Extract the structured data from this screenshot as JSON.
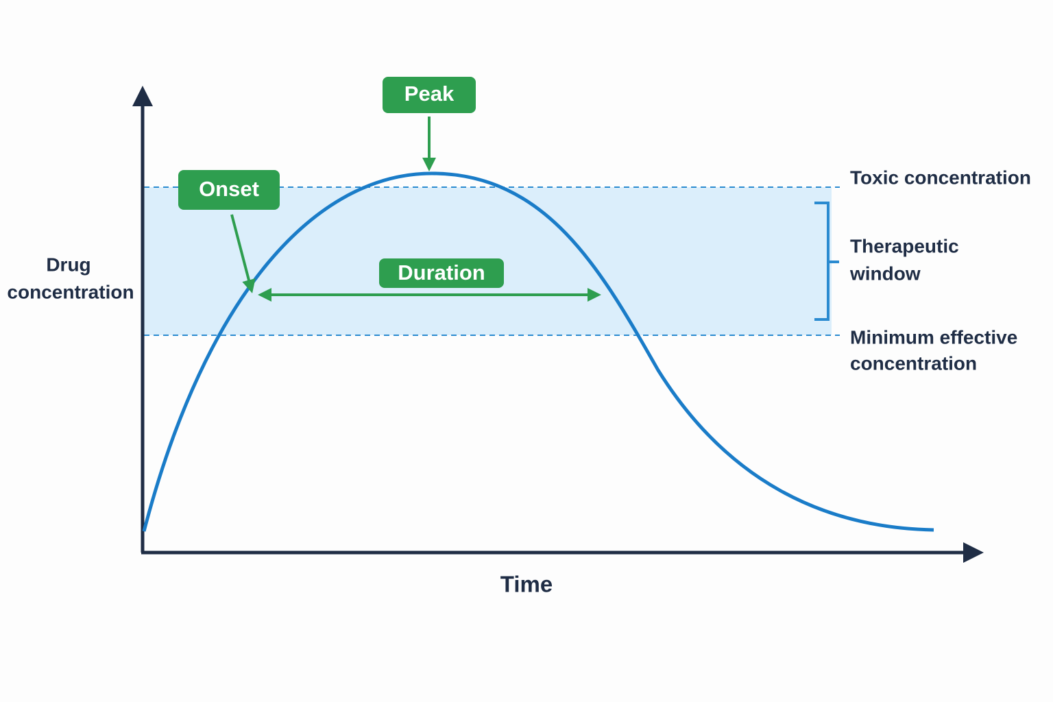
{
  "axes": {
    "x_label": "Time",
    "y_label": [
      "Drug",
      "concentration"
    ]
  },
  "annotations": {
    "peak": "Peak",
    "onset": "Onset",
    "duration": "Duration"
  },
  "levels": {
    "toxic": "Toxic concentration",
    "therapeutic_window": [
      "Therapeutic",
      "window"
    ],
    "minimum_effective": [
      "Minimum effective",
      "concentration"
    ]
  }
}
